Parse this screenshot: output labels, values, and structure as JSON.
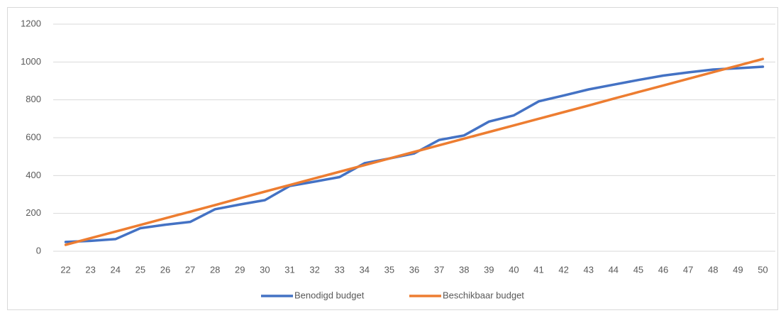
{
  "chart_data": {
    "type": "line",
    "categories": [
      "22",
      "23",
      "24",
      "25",
      "26",
      "27",
      "28",
      "29",
      "30",
      "31",
      "32",
      "33",
      "34",
      "35",
      "36",
      "37",
      "38",
      "39",
      "40",
      "41",
      "42",
      "43",
      "44",
      "45",
      "46",
      "47",
      "48",
      "49",
      "50"
    ],
    "series": [
      {
        "name": "Benodigd budget",
        "color": "#4472c4",
        "values": [
          49,
          55,
          64,
          122,
          140,
          155,
          222,
          247,
          270,
          345,
          368,
          392,
          465,
          490,
          517,
          588,
          612,
          685,
          718,
          792,
          823,
          855,
          880,
          905,
          928,
          945,
          960,
          967,
          975
        ]
      },
      {
        "name": "Beschikbaar budget",
        "color": "#ed7d31",
        "values": [
          34,
          69,
          104,
          139,
          174,
          209,
          244,
          280,
          315,
          350,
          385,
          420,
          455,
          490,
          525,
          560,
          595,
          630,
          665,
          700,
          735,
          770,
          806,
          841,
          876,
          911,
          946,
          981,
          1016
        ]
      }
    ],
    "ylim": [
      0,
      1200
    ],
    "yticks": [
      0,
      200,
      400,
      600,
      800,
      1000,
      1200
    ],
    "grid": true,
    "legend": "bottom"
  }
}
